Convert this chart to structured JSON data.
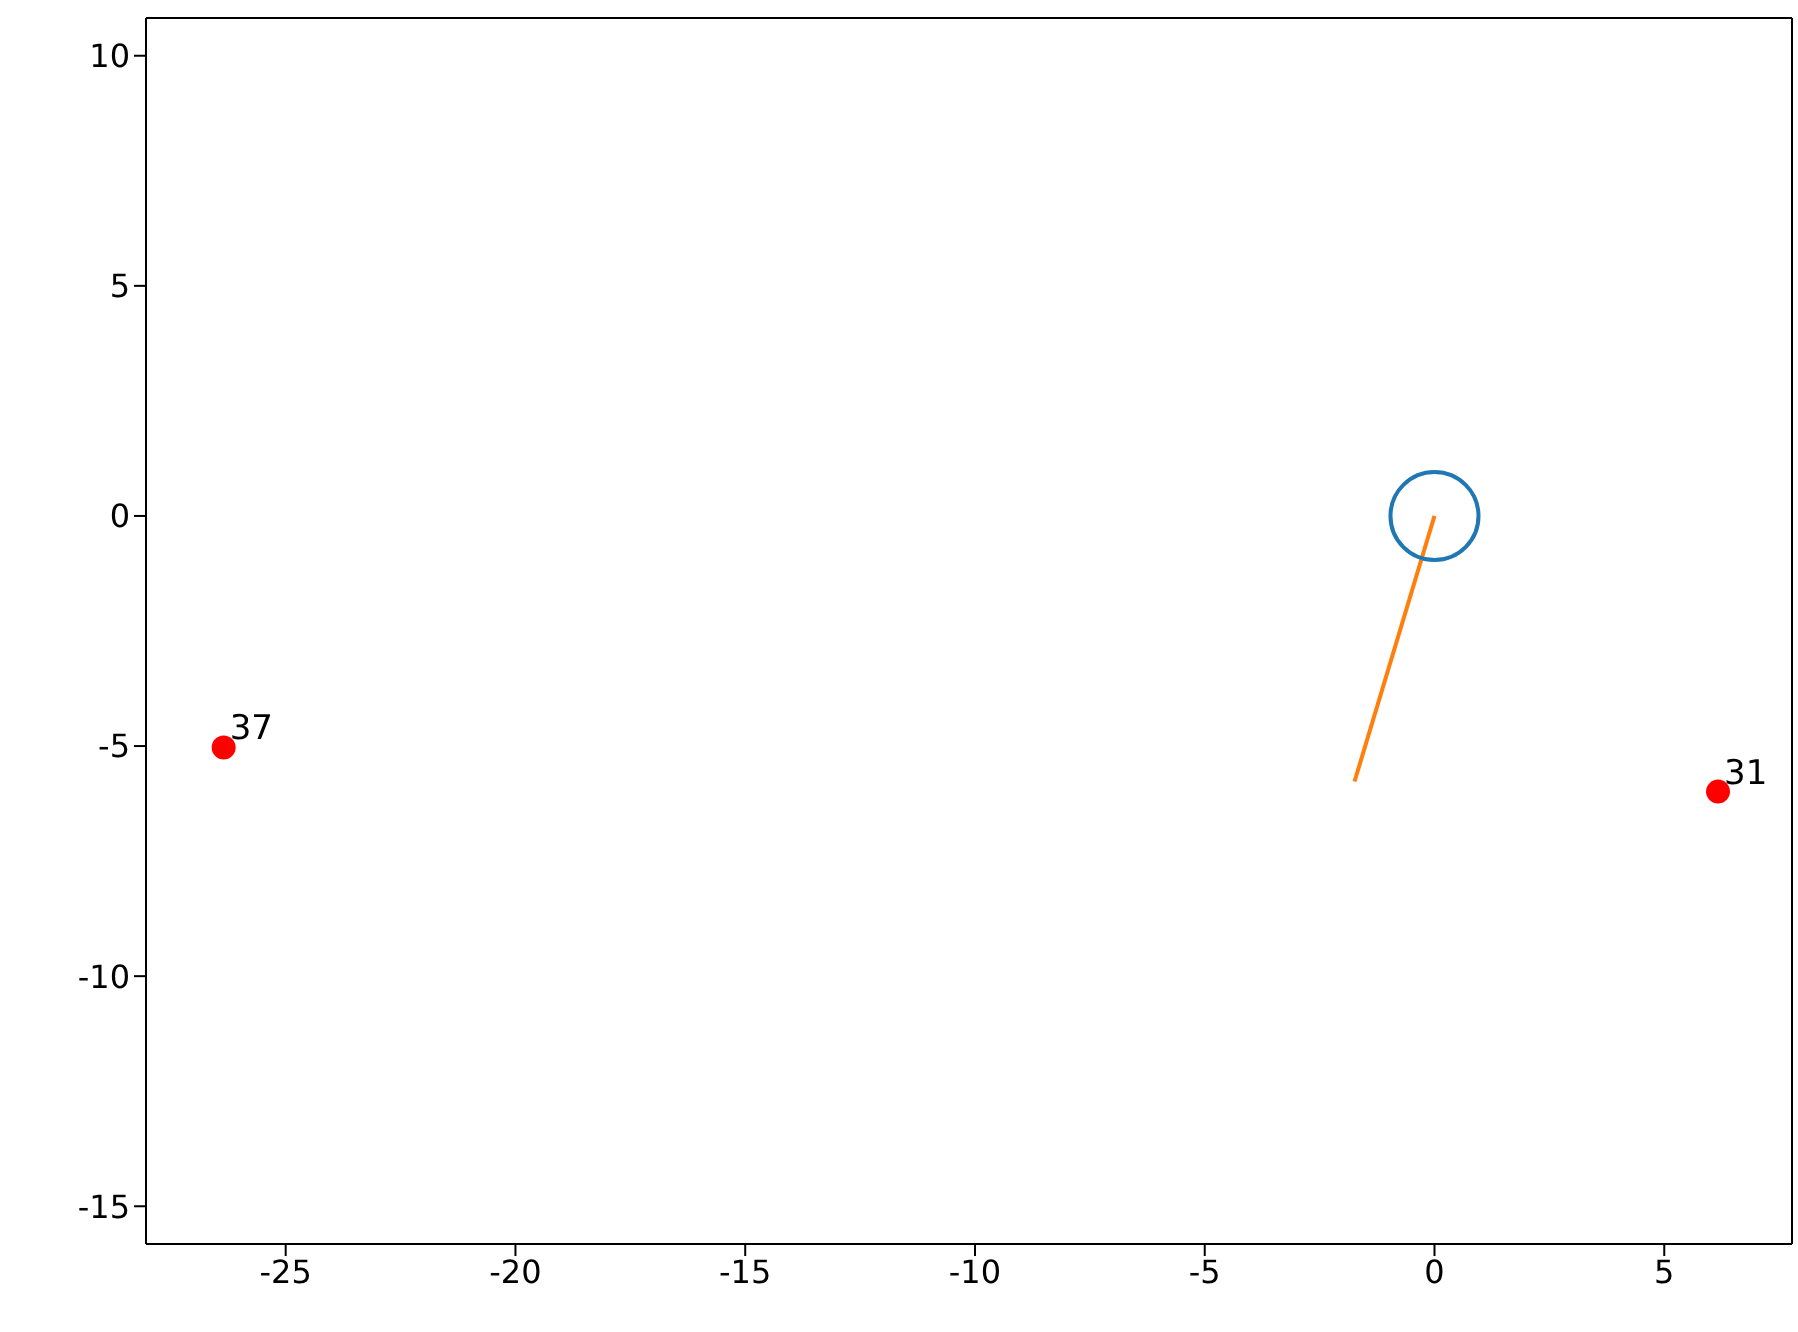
{
  "chart_data": {
    "type": "scatter",
    "xlim": [
      -28.04,
      7.78
    ],
    "ylim": [
      -15.82,
      10.82
    ],
    "xticks": [
      -25,
      -20,
      -15,
      -10,
      -5,
      0,
      5
    ],
    "yticks": [
      -15,
      -10,
      -5,
      0,
      5,
      10
    ],
    "marker": "circle",
    "series": [
      {
        "type": "bubble",
        "x": [
          0
        ],
        "values": [
          0
        ],
        "sizes": [
          1
        ],
        "color": "#1f77b4"
      },
      {
        "type": "line",
        "x": [
          0,
          -1.74
        ],
        "values": [
          0,
          -5.77
        ],
        "color": "#ff7f0e",
        "marker": "none"
      },
      {
        "x": [
          -26.35,
          6.17
        ],
        "values": [
          -5.03,
          -5.99
        ],
        "color": "#ff0000"
      }
    ],
    "annotations": [
      {
        "text": "37",
        "x": -26.35,
        "y": -5.03
      },
      {
        "text": "31",
        "x": 6.17,
        "y": -5.99
      }
    ]
  }
}
